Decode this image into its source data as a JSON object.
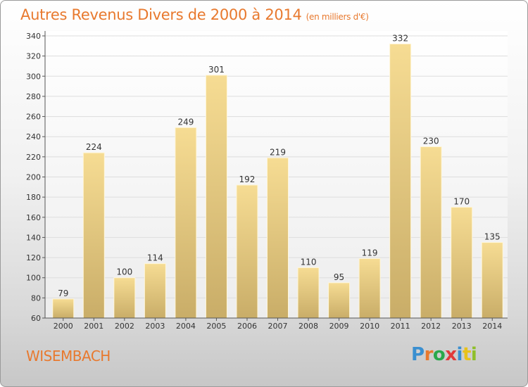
{
  "title": {
    "main": "Autres Revenus Divers de 2000 à 2014",
    "unit": "(en milliers d'€)"
  },
  "commune": "WISEMBACH",
  "brand": {
    "text": "Proxiti",
    "colors": [
      "#3a8fd0",
      "#e8792e",
      "#2aa84a",
      "#e23a3a",
      "#3a8fd0",
      "#e8c21a",
      "#8fbf2a"
    ]
  },
  "colors": {
    "title": "#e8792e",
    "bar_light": "#f6dc93",
    "bar_dark": "#c9ad68",
    "axis": "#555555",
    "grid": "#dddddd"
  },
  "chart_data": {
    "type": "bar",
    "categories": [
      "2000",
      "2001",
      "2002",
      "2003",
      "2004",
      "2005",
      "2006",
      "2007",
      "2008",
      "2009",
      "2010",
      "2011",
      "2012",
      "2013",
      "2014"
    ],
    "values": [
      79,
      224,
      100,
      114,
      249,
      301,
      192,
      219,
      110,
      95,
      119,
      332,
      230,
      170,
      135
    ],
    "ylim": [
      60,
      340
    ],
    "yticks": [
      60,
      80,
      100,
      120,
      140,
      160,
      180,
      200,
      220,
      240,
      260,
      280,
      300,
      320,
      340
    ],
    "xlabel": "",
    "ylabel": "",
    "grid": true,
    "legend": "none"
  }
}
